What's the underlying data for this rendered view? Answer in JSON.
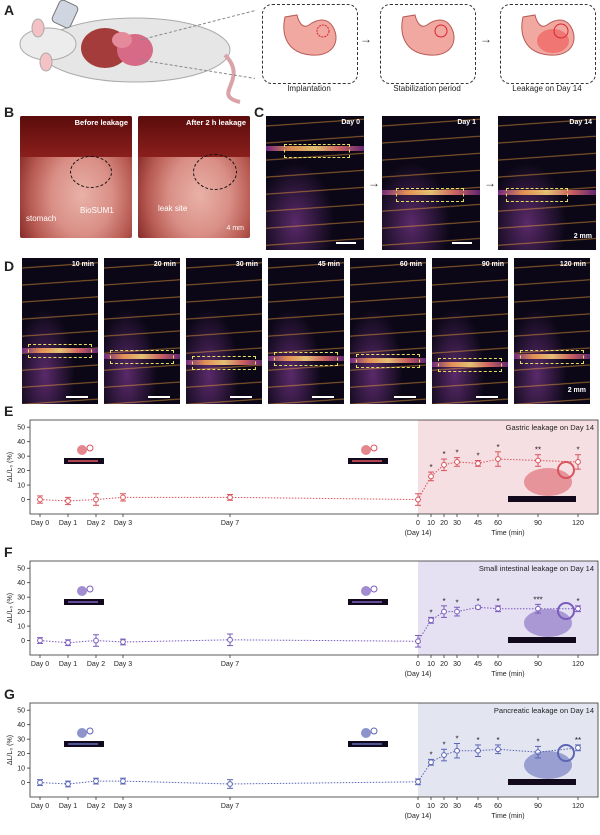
{
  "panels": {
    "A": {
      "label": "A",
      "stages": [
        "Implantation",
        "Stabilization period",
        "Leakage on Day 14"
      ]
    },
    "B": {
      "label": "B",
      "photos": [
        {
          "title": "Before leakage",
          "labels": [
            "stomach",
            "BioSUM1"
          ]
        },
        {
          "title": "After 2 h leakage",
          "labels": [
            "leak site"
          ],
          "scale": "4 mm"
        }
      ]
    },
    "C": {
      "label": "C",
      "frames": [
        "Day 0",
        "Day 1",
        "Day 14"
      ],
      "scale": "2 mm"
    },
    "D": {
      "label": "D",
      "frames": [
        "10 min",
        "20 min",
        "30 min",
        "45 min",
        "60 min",
        "90 min",
        "120 min"
      ],
      "scale": "2 mm"
    }
  },
  "chart_data": [
    {
      "panel": "E",
      "type": "scatter",
      "title": "Gastric leakage on Day 14",
      "ylabel": "ΔL/L₀ (%)",
      "xlabel": "Time (min)",
      "ylim": [
        -10,
        55
      ],
      "yticks": [
        0,
        10,
        20,
        30,
        40,
        50
      ],
      "day_ticks": [
        "Day 0",
        "Day 1",
        "Day 2",
        "Day 3",
        "Day 7",
        "0",
        "(Day 14)"
      ],
      "min_ticks": [
        "10",
        "20",
        "30",
        "45",
        "60",
        "90",
        "120"
      ],
      "color": "#d9545c",
      "shade": "#f6dfe3",
      "days": [
        0,
        1,
        2,
        3,
        7,
        14
      ],
      "day_values": [
        0,
        -1,
        0,
        1.5,
        1.5,
        0
      ],
      "day_err": [
        2.5,
        2.5,
        4,
        2.5,
        2,
        4
      ],
      "minutes": [
        10,
        20,
        30,
        45,
        60,
        90,
        120
      ],
      "min_values": [
        16,
        24,
        26,
        25,
        28,
        27,
        26
      ],
      "min_err": [
        3,
        4,
        3,
        2,
        5,
        4,
        5
      ],
      "significance": [
        "*",
        "*",
        "*",
        "*",
        "*",
        "**",
        "*"
      ]
    },
    {
      "panel": "F",
      "type": "scatter",
      "title": "Small intestinal leakage on Day 14",
      "ylabel": "ΔL/L₀ (%)",
      "xlabel": "Time (min)",
      "ylim": [
        -10,
        55
      ],
      "yticks": [
        0,
        10,
        20,
        30,
        40,
        50
      ],
      "day_ticks": [
        "Day 0",
        "Day 1",
        "Day 2",
        "Day 3",
        "Day 7",
        "0",
        "(Day 14)"
      ],
      "min_ticks": [
        "10",
        "20",
        "30",
        "45",
        "60",
        "90",
        "120"
      ],
      "color": "#7a5cbc",
      "shade": "#e5e0f2",
      "days": [
        0,
        1,
        2,
        3,
        7,
        14
      ],
      "day_values": [
        0,
        -1.5,
        0,
        -1,
        0.5,
        -0.5
      ],
      "day_err": [
        2,
        2,
        4,
        2,
        4,
        4
      ],
      "minutes": [
        10,
        20,
        30,
        45,
        60,
        90,
        120
      ],
      "min_values": [
        14,
        20,
        20,
        23,
        22,
        22,
        22
      ],
      "min_err": [
        2,
        4,
        3,
        1,
        2,
        3,
        2
      ],
      "significance": [
        "*",
        "*",
        "*",
        "*",
        "*",
        "***",
        "*"
      ]
    },
    {
      "panel": "G",
      "type": "scatter",
      "title": "Pancreatic leakage on Day 14",
      "ylabel": "ΔL/L₀ (%)",
      "xlabel": "Time (min)",
      "ylim": [
        -10,
        55
      ],
      "yticks": [
        0,
        10,
        20,
        30,
        40,
        50
      ],
      "day_ticks": [
        "Day 0",
        "Day 1",
        "Day 2",
        "Day 3",
        "Day 7",
        "0",
        "(Day 14)"
      ],
      "min_ticks": [
        "10",
        "20",
        "30",
        "45",
        "60",
        "90",
        "120"
      ],
      "color": "#5c66b5",
      "shade": "#e3e5f1",
      "days": [
        0,
        1,
        2,
        3,
        7,
        14
      ],
      "day_values": [
        0,
        -1,
        1,
        1,
        -1,
        0.5
      ],
      "day_err": [
        2,
        2,
        2,
        2,
        3,
        2
      ],
      "minutes": [
        10,
        20,
        30,
        45,
        60,
        90,
        120
      ],
      "min_values": [
        14,
        19,
        22,
        22,
        23,
        21,
        24
      ],
      "min_err": [
        2,
        4,
        5,
        4,
        3,
        4,
        2
      ],
      "significance": [
        "*",
        "*",
        "*",
        "*",
        "*",
        "*",
        "**"
      ]
    }
  ]
}
